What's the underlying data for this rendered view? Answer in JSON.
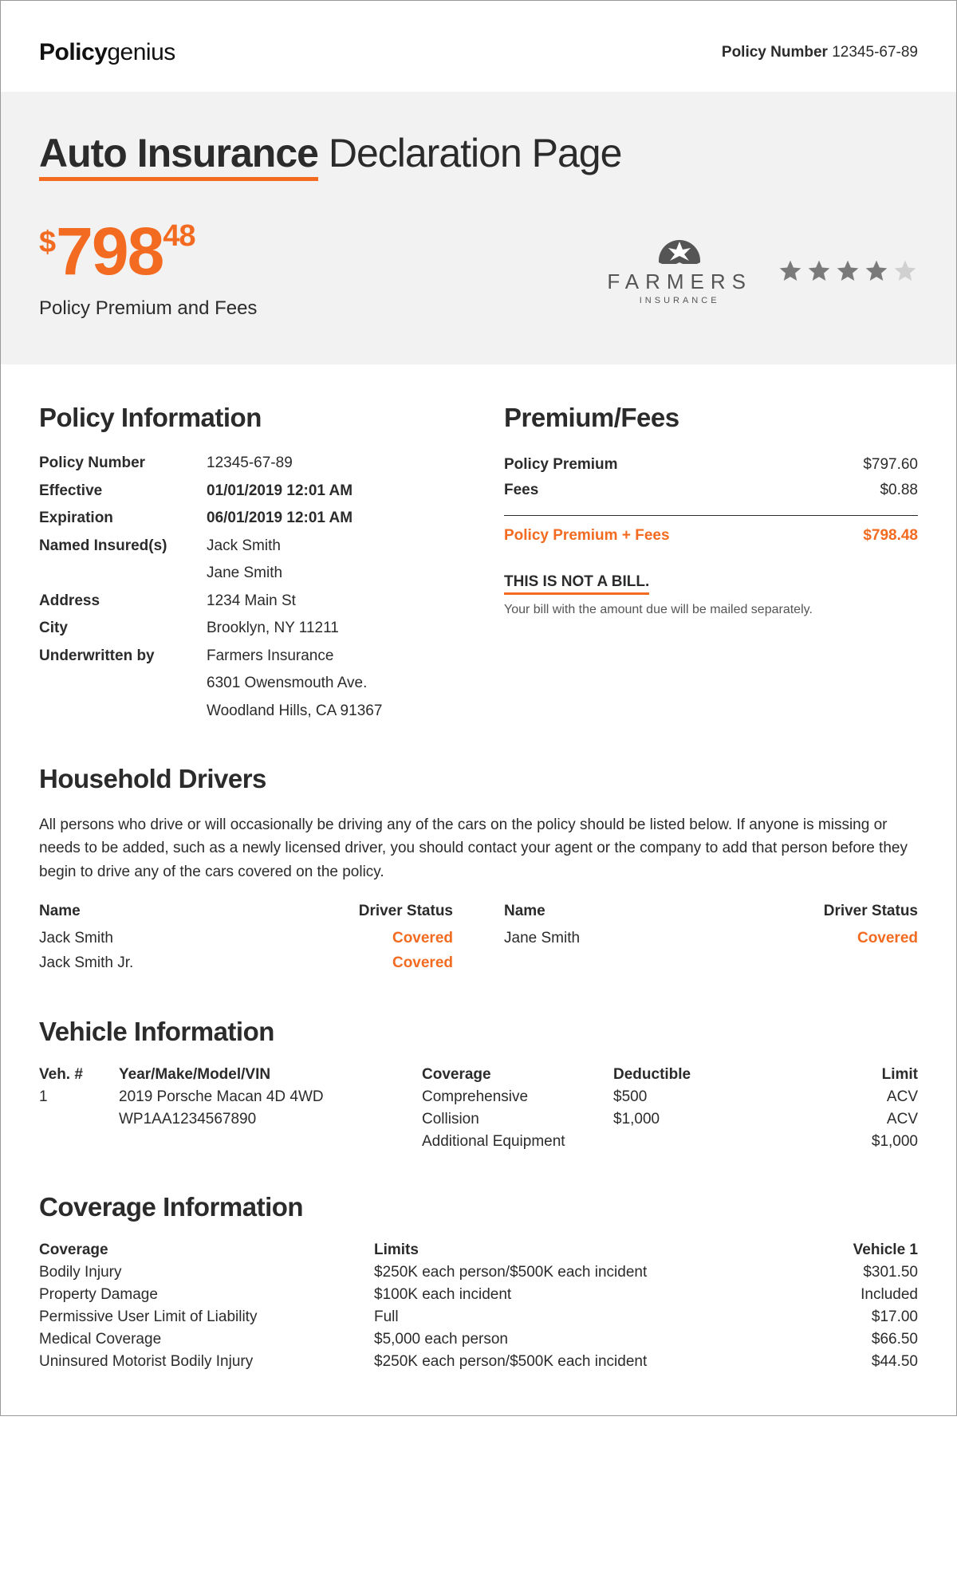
{
  "colors": {
    "accent": "#f26b21",
    "text": "#2b2b2b",
    "muted": "#555",
    "hero_bg": "#f2f2f2",
    "star_on": "#7a7a7a",
    "star_off": "#d0d0d0"
  },
  "header": {
    "brand_bold": "Policy",
    "brand_rest": "genius",
    "policy_number_label": "Policy Number",
    "policy_number_value": "12345-67-89"
  },
  "hero": {
    "title_underlined": "Auto Insurance",
    "title_rest": " Declaration Page",
    "currency": "$",
    "premium_whole": "798",
    "premium_cents": "48",
    "premium_caption": "Policy Premium and Fees",
    "insurer_name": "FARMERS",
    "insurer_sub": "INSURANCE",
    "rating": 4,
    "rating_max": 5
  },
  "policy_info": {
    "heading": "Policy Information",
    "rows": {
      "policy_number_k": "Policy Number",
      "policy_number_v": "12345-67-89",
      "effective_k": "Effective",
      "effective_v": "01/01/2019 12:01 AM",
      "expiration_k": "Expiration",
      "expiration_v": "06/01/2019 12:01 AM",
      "named_insured_k": "Named Insured(s)",
      "named_insured_v1": "Jack Smith",
      "named_insured_v2": "Jane Smith",
      "address_k": "Address",
      "address_v": "1234 Main St",
      "city_k": "City",
      "city_v": "Brooklyn, NY 11211",
      "underwritten_k": "Underwritten by",
      "underwritten_v1": "Farmers Insurance",
      "underwritten_v2": "6301 Owensmouth Ave.",
      "underwritten_v3": "Woodland Hills, CA 91367"
    }
  },
  "premium_fees": {
    "heading": "Premium/Fees",
    "premium_k": "Policy Premium",
    "premium_v": "$797.60",
    "fees_k": "Fees",
    "fees_v": "$0.88",
    "total_k": "Policy Premium + Fees",
    "total_v": "$798.48",
    "not_bill": "THIS IS NOT A BILL.",
    "not_bill_sub": "Your bill with the amount due will be mailed separately."
  },
  "drivers": {
    "heading": "Household Drivers",
    "para": "All persons who drive or will occasionally be driving any of the cars on the policy should be listed below. If anyone is missing or needs to be added, such as a newly licensed driver, you should contact your agent or the company to add that person before they begin to drive any of the cars covered on the policy.",
    "col_name": "Name",
    "col_status": "Driver Status",
    "left": [
      {
        "name": "Jack Smith",
        "status": "Covered"
      },
      {
        "name": "Jack Smith Jr.",
        "status": "Covered"
      }
    ],
    "right": [
      {
        "name": "Jane Smith",
        "status": "Covered"
      }
    ]
  },
  "vehicles": {
    "heading": "Vehicle Information",
    "h_num": "Veh. #",
    "h_ymmv": "Year/Make/Model/VIN",
    "h_cov": "Coverage",
    "h_ded": "Deductible",
    "h_lim": "Limit",
    "num": "1",
    "ymmv1": "2019 Porsche Macan 4D 4WD",
    "ymmv2": "WP1AA1234567890",
    "rows": [
      {
        "cov": "Comprehensive",
        "ded": "$500",
        "lim": "ACV"
      },
      {
        "cov": "Collision",
        "ded": "$1,000",
        "lim": "ACV"
      },
      {
        "cov": "Additional Equipment",
        "ded": "",
        "lim": "$1,000"
      }
    ]
  },
  "coverage": {
    "heading": "Coverage Information",
    "h_cov": "Coverage",
    "h_lim": "Limits",
    "h_v1": "Vehicle 1",
    "rows": [
      {
        "cov": "Bodily Injury",
        "lim": "$250K each person/$500K each incident",
        "v1": "$301.50"
      },
      {
        "cov": "Property Damage",
        "lim": "$100K each incident",
        "v1": "Included"
      },
      {
        "cov": "Permissive User Limit of Liability",
        "lim": "Full",
        "v1": "$17.00"
      },
      {
        "cov": "Medical Coverage",
        "lim": "$5,000 each person",
        "v1": "$66.50"
      },
      {
        "cov": "Uninsured Motorist Bodily Injury",
        "lim": "$250K each person/$500K each incident",
        "v1": "$44.50"
      }
    ]
  }
}
